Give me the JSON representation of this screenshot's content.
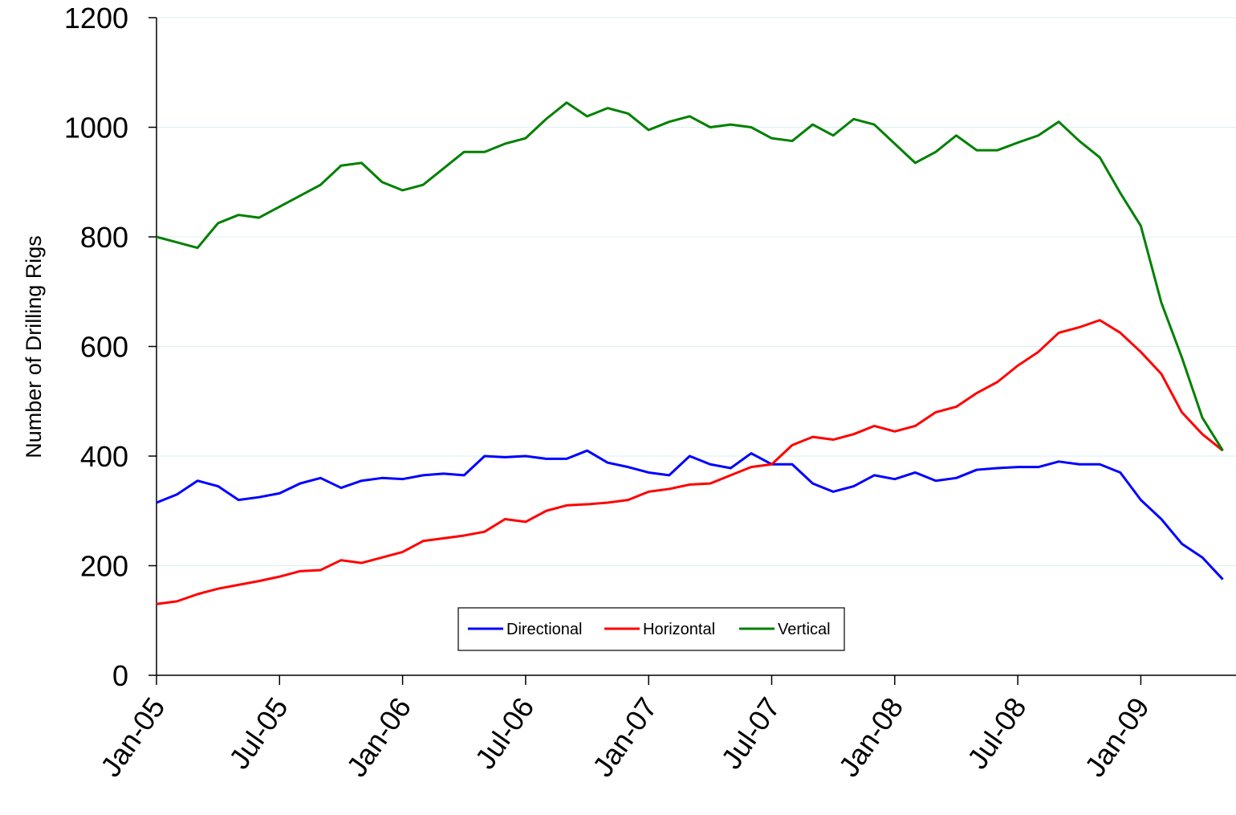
{
  "chart_data": {
    "type": "line",
    "y_label": "Number of Drilling Rigs",
    "categories": [
      "Jan-05",
      null,
      null,
      null,
      null,
      null,
      "Jul-05",
      null,
      null,
      null,
      null,
      null,
      "Jan-06",
      null,
      null,
      null,
      null,
      null,
      "Jul-06",
      null,
      null,
      null,
      null,
      null,
      "Jan-07",
      null,
      null,
      null,
      null,
      null,
      "Jul-07",
      null,
      null,
      null,
      null,
      null,
      "Jan-08",
      null,
      null,
      null,
      null,
      null,
      "Jul-08",
      null,
      null,
      null,
      null,
      null,
      "Jan-09",
      null,
      null,
      null,
      null
    ],
    "series": [
      {
        "name": "Directional",
        "color": "#0000ff",
        "values": [
          315,
          330,
          355,
          345,
          320,
          325,
          332,
          350,
          360,
          342,
          355,
          360,
          358,
          365,
          368,
          365,
          400,
          398,
          400,
          395,
          395,
          410,
          388,
          380,
          370,
          365,
          400,
          385,
          378,
          405,
          385,
          385,
          350,
          335,
          345,
          365,
          358,
          370,
          355,
          360,
          375,
          378,
          380,
          380,
          390,
          385,
          385,
          370,
          320,
          285,
          240,
          215,
          175
        ]
      },
      {
        "name": "Horizontal",
        "color": "#ff0000",
        "values": [
          130,
          135,
          148,
          158,
          165,
          172,
          180,
          190,
          192,
          210,
          205,
          215,
          225,
          245,
          250,
          255,
          262,
          285,
          280,
          300,
          310,
          312,
          315,
          320,
          335,
          340,
          348,
          350,
          365,
          380,
          385,
          420,
          435,
          430,
          440,
          455,
          445,
          455,
          480,
          490,
          515,
          535,
          565,
          590,
          625,
          635,
          648,
          625,
          590,
          550,
          480,
          440,
          410
        ]
      },
      {
        "name": "Vertical",
        "color": "#008000",
        "values": [
          800,
          790,
          780,
          825,
          840,
          835,
          855,
          875,
          895,
          930,
          935,
          900,
          885,
          895,
          925,
          955,
          955,
          970,
          980,
          1015,
          1045,
          1020,
          1035,
          1025,
          995,
          1010,
          1020,
          1000,
          1005,
          1000,
          980,
          975,
          1005,
          985,
          1015,
          1005,
          970,
          935,
          955,
          985,
          958,
          958,
          972,
          985,
          1010,
          975,
          945,
          880,
          820,
          680,
          580,
          470,
          410
        ]
      }
    ],
    "ylim": [
      0,
      1200
    ],
    "yticks": [
      0,
      200,
      400,
      600,
      800,
      1000,
      1200
    ],
    "grid": true
  }
}
